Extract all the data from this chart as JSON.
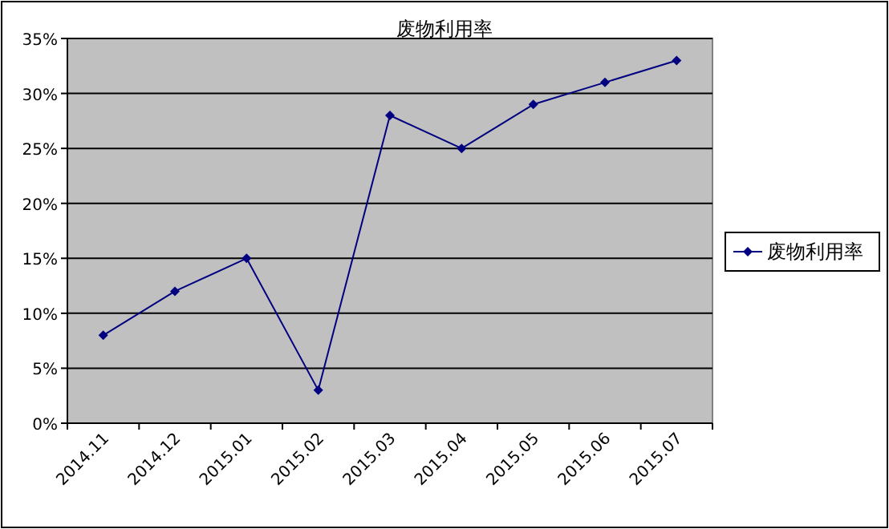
{
  "chart_data": {
    "type": "line",
    "title": "废物利用率",
    "categories": [
      "2014.11",
      "2014.12",
      "2015.01",
      "2015.02",
      "2015.03",
      "2015.04",
      "2015.05",
      "2015.06",
      "2015.07"
    ],
    "series": [
      {
        "name": "废物利用率",
        "color": "#000080",
        "values": [
          8,
          12,
          15,
          3,
          28,
          25,
          29,
          31,
          33
        ]
      }
    ],
    "ylim": [
      0,
      35
    ],
    "yticks": [
      {
        "value": 0,
        "label": "0%"
      },
      {
        "value": 5,
        "label": "5%"
      },
      {
        "value": 10,
        "label": "10%"
      },
      {
        "value": 15,
        "label": "15%"
      },
      {
        "value": 20,
        "label": "20%"
      },
      {
        "value": 25,
        "label": "25%"
      },
      {
        "value": 30,
        "label": "30%"
      },
      {
        "value": 35,
        "label": "35%"
      }
    ],
    "grid": "y",
    "legend": "right",
    "marker": "diamond",
    "line_style": "solid"
  }
}
